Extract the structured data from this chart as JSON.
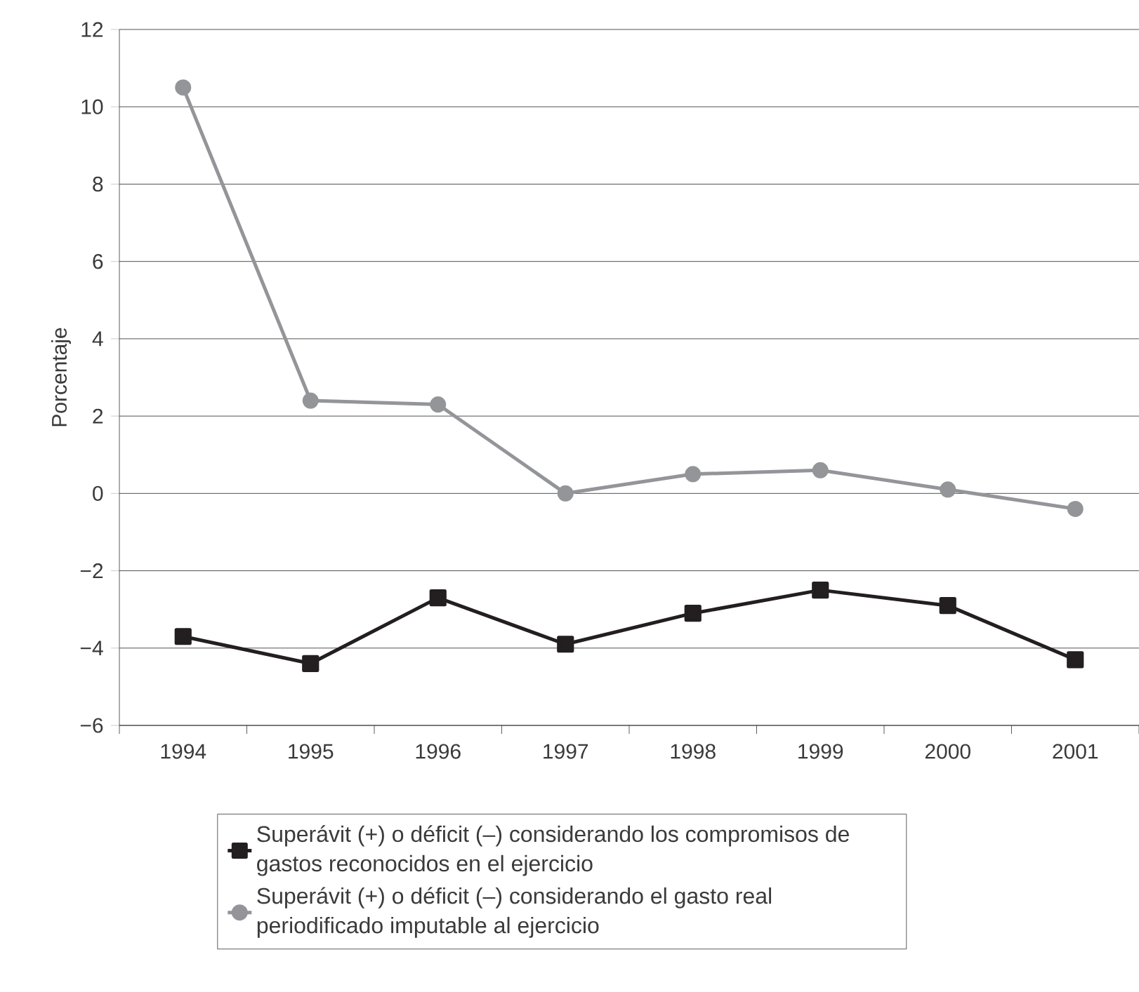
{
  "chart_data": {
    "type": "line",
    "ylabel": "Porcentaje",
    "categories": [
      "1994",
      "1995",
      "1996",
      "1997",
      "1998",
      "1999",
      "2000",
      "2001"
    ],
    "series": [
      {
        "name": "Superávit (+) o déficit (–) considerando los compromisos de gastos reconocidos en el ejercicio",
        "color": "#231f20",
        "marker": "square",
        "values": [
          -3.7,
          -4.4,
          -2.7,
          -3.9,
          -3.1,
          -2.5,
          -2.9,
          -4.3
        ]
      },
      {
        "name": "Superávit (+) o déficit (–) considerando el gasto real periodificado imputable al ejercicio",
        "color": "#939598",
        "marker": "circle",
        "values": [
          10.5,
          2.4,
          2.3,
          0,
          0.5,
          0.6,
          0.1,
          -0.4
        ]
      }
    ],
    "ylim": [
      -6,
      12
    ],
    "yticks": [
      {
        "value": -6,
        "label": "−6"
      },
      {
        "value": -4,
        "label": "−4"
      },
      {
        "value": -2,
        "label": "−2"
      },
      0,
      2,
      4,
      6,
      8,
      10,
      12
    ],
    "grid": "y",
    "legend": "bottom",
    "line_style": "solid"
  }
}
